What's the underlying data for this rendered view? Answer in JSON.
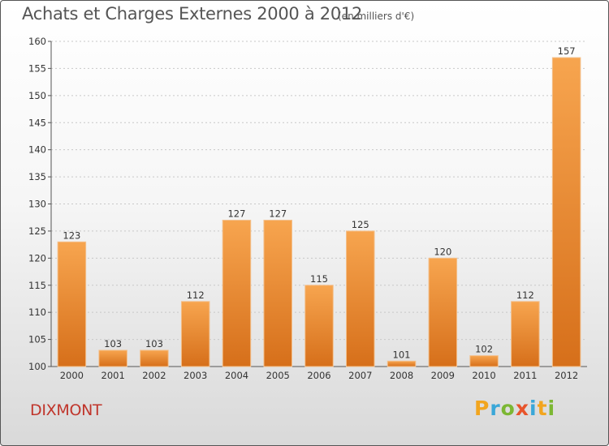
{
  "title": "Achats et Charges Externes 2000 à 2012",
  "unit": "(en milliers d'€)",
  "place": "DIXMONT",
  "logo": {
    "letters": [
      "P",
      "r",
      "o",
      "x",
      "i",
      "t",
      "i"
    ],
    "colors": [
      "#f2a51e",
      "#3aa7d8",
      "#7cb733",
      "#e8542b",
      "#3aa7d8",
      "#f2a51e",
      "#7cb733"
    ]
  },
  "colors": {
    "bar_top": "#f7a54f",
    "bar_bottom": "#d66f1a",
    "place": "#c0352b"
  },
  "chart_data": {
    "type": "bar",
    "categories": [
      "2000",
      "2001",
      "2002",
      "2003",
      "2004",
      "2005",
      "2006",
      "2007",
      "2008",
      "2009",
      "2010",
      "2011",
      "2012"
    ],
    "values": [
      123,
      103,
      103,
      112,
      127,
      127,
      115,
      125,
      101,
      120,
      102,
      112,
      157
    ],
    "value_labels": [
      "123",
      "103",
      "103",
      "112",
      "127",
      "127",
      "115",
      "125",
      "101",
      "120",
      "102",
      "112",
      "157"
    ],
    "title": "Achats et Charges Externes 2000 à 2012",
    "ylim": [
      100,
      160
    ],
    "yticks": [
      100,
      105,
      110,
      115,
      120,
      125,
      130,
      135,
      140,
      145,
      150,
      155,
      160
    ],
    "grid": true
  }
}
